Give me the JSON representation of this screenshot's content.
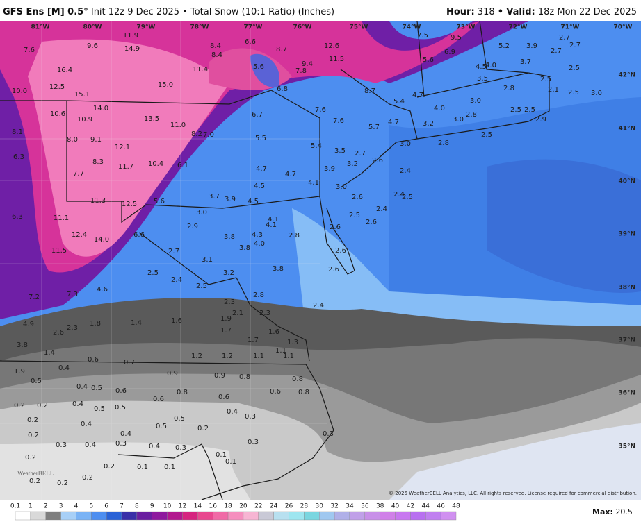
{
  "header": {
    "model": "GFS Ens [M] 0.5°",
    "info": "Init 12z 9 Dec 2025 • Total Snow (10:1 Ratio) (Inches)",
    "hour_label": "Hour:",
    "hour": "318",
    "sep": "•",
    "valid_label": "Valid:",
    "valid": "18z Mon 22 Dec 2025"
  },
  "map": {
    "lon_labels": [
      "81°W",
      "80°W",
      "79°W",
      "78°W",
      "77°W",
      "76°W",
      "75°W",
      "74°W",
      "73°W",
      "72°W",
      "71°W",
      "70°W"
    ],
    "lat_labels": [
      "42°N",
      "41°N",
      "40°N",
      "39°N",
      "38°N",
      "37°N",
      "36°N",
      "35°N"
    ],
    "values": [
      "11.9",
      "9.6",
      "14.9",
      "7.6",
      "8.4",
      "8.4",
      "6.6",
      "8.7",
      "12.6",
      "7.5",
      "9.5",
      "6.9",
      "5.2",
      "3.9",
      "2.7",
      "2.7",
      "2.7",
      "16.4",
      "11.4",
      "5.6",
      "7.8",
      "9.4",
      "11.5",
      "5.6",
      "4.5",
      "4.0",
      "3.7",
      "2.5",
      "12.5",
      "10.0",
      "15.1",
      "15.0",
      "6.8",
      "8.7",
      "3.5",
      "2.5",
      "4.7",
      "2.8",
      "2.1",
      "2.5",
      "3.0",
      "14.0",
      "10.6",
      "5.4",
      "3.0",
      "4.0",
      "10.9",
      "13.5",
      "11.0",
      "6.7",
      "7.6",
      "7.6",
      "4.7",
      "3.2",
      "3.0",
      "2.8",
      "2.5",
      "2.5",
      "2.9",
      "8.1",
      "8.2",
      "7.0",
      "5.7",
      "8.0",
      "9.1",
      "5.5",
      "5.4",
      "3.0",
      "2.8",
      "2.5",
      "12.1",
      "3.5",
      "2.7",
      "2.6",
      "6.3",
      "8.3",
      "11.7",
      "10.4",
      "6.1",
      "4.7",
      "4.7",
      "3.9",
      "3.2",
      "2.4",
      "7.7",
      "4.5",
      "4.1",
      "3.0",
      "2.4",
      "2.6",
      "2.5",
      "11.3",
      "12.5",
      "5.6",
      "3.7",
      "3.9",
      "4.5",
      "2.4",
      "3.0",
      "6.3",
      "11.1",
      "2.5",
      "2.6",
      "4.1",
      "4.1",
      "2.9",
      "2.6",
      "12.4",
      "14.0",
      "6.6",
      "3.8",
      "4.3",
      "2.8",
      "4.0",
      "3.8",
      "2.7",
      "2.6",
      "11.5",
      "3.1",
      "3.8",
      "2.6",
      "2.5",
      "3.2",
      "2.4",
      "4.6",
      "2.5",
      "2.8",
      "7.2",
      "7.3",
      "2.3",
      "2.4",
      "2.1",
      "1.9",
      "2.3",
      "1.6",
      "1.4",
      "1.8",
      "4.9",
      "2.3",
      "2.6",
      "1.7",
      "1.6",
      "1.7",
      "1.3",
      "3.8",
      "1.4",
      "1.1",
      "1.1",
      "1.2",
      "1.2",
      "1.1",
      "0.6",
      "0.7",
      "0.4",
      "1.9",
      "0.9",
      "0.9",
      "0.8",
      "0.8",
      "0.5",
      "0.4",
      "0.5",
      "0.6",
      "0.8",
      "0.6",
      "0.8",
      "0.6",
      "0.6",
      "0.2",
      "0.2",
      "0.4",
      "0.5",
      "0.5",
      "0.4",
      "0.3",
      "0.5",
      "0.2",
      "0.4",
      "0.5",
      "0.2",
      "0.4",
      "0.2",
      "0.3",
      "0.3",
      "0.3",
      "0.4",
      "0.3",
      "0.4",
      "0.3",
      "0.2",
      "0.1",
      "0.1",
      "0.2",
      "0.1",
      "0.1",
      "0.2",
      "0.2",
      "0.2"
    ]
  },
  "logo": "WeatherBELL",
  "copyright": "© 2025 WeatherBELL Analytics, LLC. All rights reserved. License required for commercial distribution.",
  "colorbar": {
    "labels": [
      "0.1",
      "1",
      "2",
      "3",
      "4",
      "5",
      "6",
      "7",
      "8",
      "9",
      "10",
      "12",
      "14",
      "16",
      "18",
      "20",
      "22",
      "24",
      "26",
      "28",
      "30",
      "32",
      "34",
      "36",
      "38",
      "40",
      "42",
      "44",
      "46",
      "48"
    ]
  },
  "max": {
    "label": "Max:",
    "value": "20.5"
  }
}
